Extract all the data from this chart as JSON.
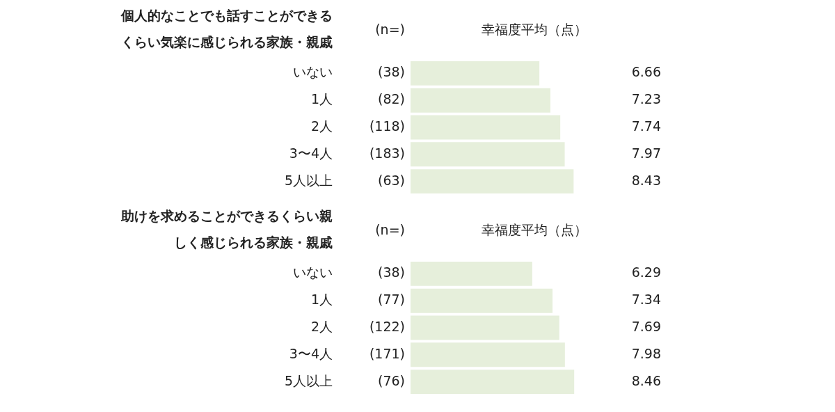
{
  "chart_data": [
    {
      "type": "bar",
      "orientation": "horizontal",
      "title": "個人的なことでも話すことができるくらい気楽に感じられる家族・親戚",
      "xlabel": "幸福度平均（点）",
      "categories": [
        "いない",
        "1人",
        "2人",
        "3〜4人",
        "5人以上"
      ],
      "values": [
        6.66,
        7.23,
        7.74,
        7.97,
        8.43
      ],
      "color": "#e6efdb",
      "tick_labels": "y",
      "legend": false,
      "data_labels": true,
      "annotations": [
        "(n=)",
        "(38)",
        "(82)",
        "(118)",
        "(183)",
        "(63)"
      ]
    },
    {
      "type": "bar",
      "orientation": "horizontal",
      "title": "助けを求めることができるくらい親しく感じられる家族・親戚",
      "xlabel": "幸福度平均（点）",
      "categories": [
        "いない",
        "1人",
        "2人",
        "3〜4人",
        "5人以上"
      ],
      "values": [
        6.29,
        7.34,
        7.69,
        7.98,
        8.46
      ],
      "color": "#e6efdb",
      "tick_labels": "y",
      "legend": false,
      "data_labels": true,
      "annotations": [
        "(n=)",
        "(38)",
        "(77)",
        "(122)",
        "(171)",
        "(76)"
      ]
    }
  ]
}
